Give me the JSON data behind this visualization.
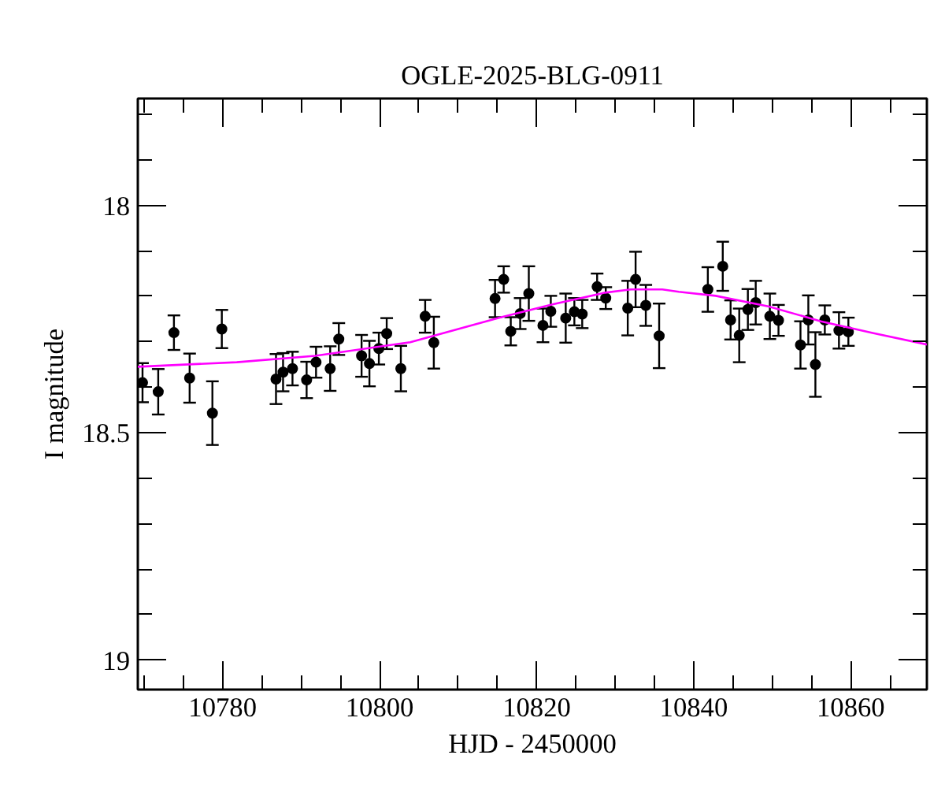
{
  "chart_data": {
    "type": "scatter",
    "title": "OGLE-2025-BLG-0911",
    "xlabel": "HJD - 2450000",
    "ylabel": "I magnitude",
    "xlim": [
      10769.2,
      10869.7
    ],
    "ylim": [
      19.065,
      17.765
    ],
    "xticks": [
      {
        "value": 10770,
        "label": null
      },
      {
        "value": 10775,
        "label": null
      },
      10780,
      {
        "value": 10785,
        "label": null
      },
      {
        "value": 10790,
        "label": null
      },
      {
        "value": 10795,
        "label": null
      },
      10800,
      {
        "value": 10805,
        "label": null
      },
      {
        "value": 10810,
        "label": null
      },
      {
        "value": 10815,
        "label": null
      },
      10820,
      {
        "value": 10825,
        "label": null
      },
      {
        "value": 10830,
        "label": null
      },
      {
        "value": 10835,
        "label": null
      },
      10840,
      {
        "value": 10845,
        "label": null
      },
      {
        "value": 10850,
        "label": null
      },
      {
        "value": 10855,
        "label": null
      },
      10860,
      {
        "value": 10865,
        "label": null
      }
    ],
    "yticks": [
      {
        "value": 17.8,
        "label": null
      },
      {
        "value": 17.9,
        "label": null
      },
      18,
      {
        "value": 18.1,
        "label": null
      },
      {
        "value": 18.2,
        "label": null
      },
      {
        "value": 18.3,
        "label": null
      },
      {
        "value": 18.4,
        "label": null
      },
      18.5,
      {
        "value": 18.6,
        "label": null
      },
      {
        "value": 18.7,
        "label": null
      },
      {
        "value": 18.8,
        "label": null
      },
      {
        "value": 18.9,
        "label": null
      },
      19
    ],
    "grid": false,
    "series": [
      {
        "color": "#000000",
        "marker": "circle",
        "x": [
          10769.8,
          10771.8,
          10773.8,
          10775.8,
          10778.7,
          10779.9,
          10786.8,
          10787.7,
          10788.9,
          10790.7,
          10791.9,
          10793.7,
          10794.8,
          10797.7,
          10798.7,
          10799.9,
          10800.9,
          10802.7,
          10805.8,
          10806.9,
          10814.7,
          10815.8,
          10816.7,
          10817.9,
          10819.0,
          10820.8,
          10821.8,
          10823.7,
          10824.8,
          10825.8,
          10827.7,
          10828.8,
          10831.6,
          10832.6,
          10833.9,
          10835.6,
          10841.8,
          10843.7,
          10844.7,
          10845.8,
          10846.9,
          10847.9,
          10849.7,
          10850.8,
          10853.6,
          10854.6,
          10855.5,
          10856.7,
          10858.5,
          10859.7
        ],
        "values": [
          18.39,
          18.41,
          18.28,
          18.38,
          18.457,
          18.272,
          18.382,
          18.367,
          18.359,
          18.384,
          18.345,
          18.359,
          18.294,
          18.331,
          18.348,
          18.315,
          18.282,
          18.359,
          18.244,
          18.302,
          18.205,
          18.163,
          18.277,
          18.238,
          18.194,
          18.264,
          18.233,
          18.248,
          18.234,
          18.239,
          18.179,
          18.204,
          18.226,
          18.163,
          18.22,
          18.287,
          18.185,
          18.134,
          18.252,
          18.286,
          18.229,
          18.214,
          18.244,
          18.253,
          18.307,
          18.252,
          18.35,
          18.252,
          18.275,
          18.278
        ],
        "errors": [
          0.043,
          0.05,
          0.038,
          0.054,
          0.07,
          0.042,
          0.055,
          0.042,
          0.037,
          0.04,
          0.034,
          0.049,
          0.035,
          0.046,
          0.05,
          0.035,
          0.034,
          0.05,
          0.036,
          0.057,
          0.041,
          0.029,
          0.031,
          0.034,
          0.06,
          0.037,
          0.034,
          0.054,
          0.03,
          0.031,
          0.029,
          0.024,
          0.06,
          0.061,
          0.045,
          0.071,
          0.049,
          0.054,
          0.043,
          0.059,
          0.045,
          0.048,
          0.05,
          0.034,
          0.052,
          0.054,
          0.071,
          0.032,
          0.04,
          0.031
        ]
      },
      {
        "type": "line",
        "color": "#ff00ff",
        "marker": "none",
        "line_style": "solid",
        "x": [
          10769.2,
          10781.8,
          10791.8,
          10803.9,
          10815.3,
          10822.0,
          10828.7,
          10832.0,
          10836.0,
          10838.1,
          10842.8,
          10849.5,
          10856.2,
          10862.9,
          10869.7
        ],
        "values": [
          18.355,
          18.345,
          18.331,
          18.301,
          18.247,
          18.218,
          18.192,
          18.185,
          18.185,
          18.19,
          18.199,
          18.222,
          18.255,
          18.281,
          18.306
        ]
      }
    ]
  }
}
